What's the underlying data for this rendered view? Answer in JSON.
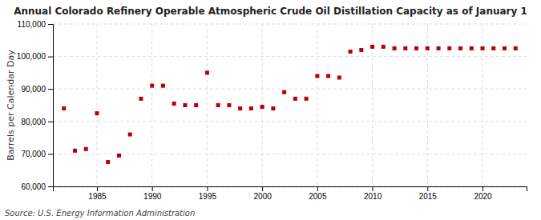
{
  "chart_data": {
    "type": "scatter",
    "title": "Annual Colorado Refinery Operable Atmospheric Crude Oil Distillation Capacity as of January 1",
    "ylabel": "Barrels per Calendar Day",
    "source": "Source: U.S. Energy Information Administration",
    "color": "#bb0000",
    "marker": "square",
    "grid": true,
    "x": [
      1982,
      1983,
      1984,
      1985,
      1986,
      1987,
      1988,
      1989,
      1990,
      1991,
      1992,
      1993,
      1994,
      1995,
      1996,
      1997,
      1998,
      1999,
      2000,
      2001,
      2002,
      2003,
      2004,
      2005,
      2006,
      2007,
      2008,
      2009,
      2010,
      2011,
      2012,
      2013,
      2014,
      2015,
      2016,
      2017,
      2018,
      2019,
      2020,
      2021,
      2022,
      2023
    ],
    "values": [
      84000,
      71000,
      71500,
      82500,
      67500,
      69500,
      76000,
      87000,
      91000,
      91000,
      85500,
      85000,
      85000,
      95000,
      85000,
      85000,
      84000,
      84000,
      84500,
      84000,
      89000,
      87000,
      87000,
      94000,
      94000,
      93500,
      101500,
      102000,
      103000,
      103000,
      102500,
      102500,
      102500,
      102500,
      102500,
      102500,
      102500,
      102500,
      102500,
      102500,
      102500,
      102500
    ],
    "xlim": [
      1981,
      2024
    ],
    "xticks": [
      1985,
      1990,
      1995,
      2000,
      2005,
      2010,
      2015,
      2020
    ],
    "ylim": [
      60000,
      110000
    ],
    "yticks": [
      {
        "value": 60000,
        "label": "60,000"
      },
      {
        "value": 70000,
        "label": "70,000"
      },
      {
        "value": 80000,
        "label": "80,000"
      },
      {
        "value": 90000,
        "label": "90,000"
      },
      {
        "value": 100000,
        "label": "100,000"
      },
      {
        "value": 110000,
        "label": "110,000"
      }
    ]
  }
}
